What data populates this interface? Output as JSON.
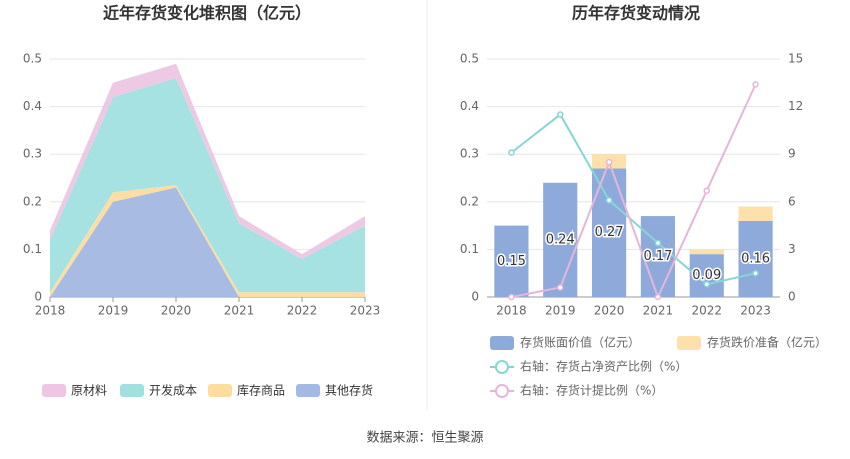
{
  "chart_data": [
    {
      "type": "stacked_area",
      "title": "近年存货变化堆积图（亿元）",
      "categories": [
        "2018",
        "2019",
        "2020",
        "2021",
        "2022",
        "2023"
      ],
      "ylim": [
        0,
        0.5
      ],
      "yticks": [
        0,
        0.1,
        0.2,
        0.3,
        0.4,
        0.5
      ],
      "grid": true,
      "series": [
        {
          "name": "其他存货",
          "color": "#a3b8e2",
          "values": [
            0,
            0.2,
            0.23,
            0,
            0,
            0
          ]
        },
        {
          "name": "库存商品",
          "color": "#fcdc9f",
          "values": [
            0.01,
            0.02,
            0.005,
            0.01,
            0.01,
            0.01
          ]
        },
        {
          "name": "开发成本",
          "color": "#a2e0e0",
          "values": [
            0.11,
            0.2,
            0.225,
            0.145,
            0.07,
            0.14
          ]
        },
        {
          "name": "原材料",
          "color": "#ecc6e2",
          "values": [
            0.02,
            0.03,
            0.03,
            0.015,
            0.01,
            0.02
          ]
        }
      ],
      "legend_order": [
        3,
        2,
        1,
        0
      ]
    },
    {
      "type": "bar_line",
      "title": "历年存货变动情况",
      "categories": [
        "2018",
        "2019",
        "2020",
        "2021",
        "2022",
        "2023"
      ],
      "ylim": [
        0,
        0.5
      ],
      "yticks": [
        0,
        0.1,
        0.2,
        0.3,
        0.4,
        0.5
      ],
      "y2lim": [
        0,
        15
      ],
      "y2ticks": [
        0,
        3,
        6,
        9,
        12,
        15
      ],
      "grid": true,
      "series": [
        {
          "name": "存货账面价值（亿元）",
          "color": "#8eaadb",
          "kind": "bar",
          "values": [
            0.15,
            0.24,
            0.27,
            0.17,
            0.09,
            0.16
          ]
        },
        {
          "name": "存货跌价准备（亿元）",
          "color": "#fde0aa",
          "kind": "bar",
          "values": [
            0,
            0,
            0.03,
            0,
            0.01,
            0.03
          ]
        },
        {
          "name": "右轴：存货占净资产比例（%）",
          "color": "#86d6d6",
          "kind": "line",
          "axis": "y2",
          "values": [
            9.1,
            11.5,
            6.1,
            3.4,
            0.8,
            1.5
          ]
        },
        {
          "name": "右轴：存货计提比例（%）",
          "color": "#e6b6da",
          "kind": "line",
          "axis": "y2",
          "values": [
            0,
            0.6,
            8.5,
            0,
            6.7,
            13.4
          ]
        }
      ]
    }
  ],
  "footer": "数据来源：恒生聚源"
}
